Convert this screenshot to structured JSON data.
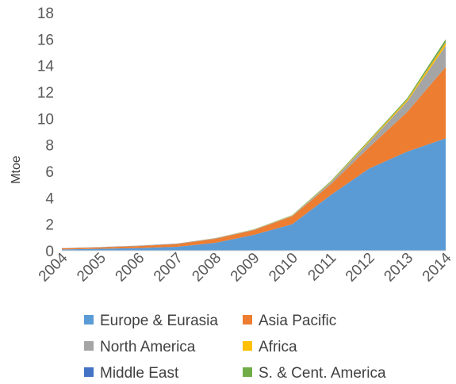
{
  "chart_data": {
    "type": "area",
    "stacked": true,
    "categories": [
      "2004",
      "2005",
      "2006",
      "2007",
      "2008",
      "2009",
      "2010",
      "2011",
      "2012",
      "2013",
      "2014"
    ],
    "ylabel": "Mtoe",
    "ylim": [
      0,
      18
    ],
    "yticks": [
      "0",
      "2",
      "4",
      "6",
      "8",
      "10",
      "12",
      "14",
      "16",
      "18"
    ],
    "grid": false,
    "legend_position": "bottom",
    "series": [
      {
        "name": "Europe & Eurasia",
        "color": "#5B9BD5",
        "values": [
          0.1,
          0.15,
          0.2,
          0.3,
          0.6,
          1.2,
          2.0,
          4.2,
          6.2,
          7.5,
          8.5
        ]
      },
      {
        "name": "Asia Pacific",
        "color": "#ED7D31",
        "values": [
          0.08,
          0.1,
          0.15,
          0.2,
          0.3,
          0.35,
          0.6,
          0.8,
          1.6,
          3.0,
          5.4
        ]
      },
      {
        "name": "North America",
        "color": "#A5A5A5",
        "values": [
          0.02,
          0.03,
          0.04,
          0.05,
          0.05,
          0.05,
          0.05,
          0.15,
          0.4,
          0.8,
          1.6
        ]
      },
      {
        "name": "Africa",
        "color": "#FFC000",
        "values": [
          0,
          0,
          0,
          0,
          0.01,
          0.01,
          0.02,
          0.04,
          0.08,
          0.12,
          0.25
        ]
      },
      {
        "name": "Middle East",
        "color": "#4472C4",
        "values": [
          0,
          0,
          0,
          0,
          0,
          0,
          0,
          0.01,
          0.01,
          0.02,
          0.05
        ]
      },
      {
        "name": "S. & Cent. America",
        "color": "#70AD47",
        "values": [
          0,
          0,
          0,
          0,
          0,
          0.01,
          0.02,
          0.05,
          0.07,
          0.1,
          0.2
        ]
      }
    ]
  }
}
